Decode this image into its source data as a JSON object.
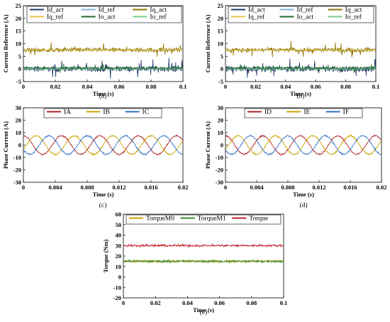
{
  "chart_data": [
    {
      "id": "a",
      "type": "line",
      "caption": "(a)",
      "xlabel": "Time (s)",
      "ylabel": "Current Reference (A)",
      "xlim": [
        0,
        0.1
      ],
      "ylim": [
        -5,
        25
      ],
      "xticks": [
        "0",
        "0.02",
        "0.04",
        "0.06",
        "0.08",
        "0.1"
      ],
      "yticks": [
        "-5",
        "0",
        "5",
        "10",
        "15",
        "20",
        "25"
      ],
      "legend_position": "top",
      "series": [
        {
          "name": "Id_act",
          "color": "#1f3a6b",
          "kind": "noisy",
          "mean": 0,
          "noise": 1.5,
          "spikes": 3.5
        },
        {
          "name": "Id_ref",
          "color": "#7fb3e0",
          "kind": "const",
          "mean": 0
        },
        {
          "name": "Iq_act",
          "color": "#8f7500",
          "kind": "noisy",
          "mean": 7.5,
          "noise": 1.2,
          "spikes": 3
        },
        {
          "name": "Iq_ref",
          "color": "#e8c54a",
          "kind": "const",
          "mean": 7.5
        },
        {
          "name": "Io_act",
          "color": "#1e6b2f",
          "kind": "noisy",
          "mean": 0.3,
          "noise": 0.8,
          "spikes": 1.5
        },
        {
          "name": "Io_ref",
          "color": "#7cc98a",
          "kind": "const",
          "mean": 0
        }
      ]
    },
    {
      "id": "b",
      "type": "line",
      "caption": "(b)",
      "xlabel": "Time (s)",
      "ylabel": "Current Reference (A)",
      "xlim": [
        0,
        0.1
      ],
      "ylim": [
        -5,
        25
      ],
      "xticks": [
        "0",
        "0.02",
        "0.04",
        "0.06",
        "0.08",
        "0.1"
      ],
      "yticks": [
        "-5",
        "0",
        "5",
        "10",
        "15",
        "20",
        "25"
      ],
      "legend_position": "top",
      "series": [
        {
          "name": "Id_act",
          "color": "#1f3a6b",
          "kind": "noisy",
          "mean": 0,
          "noise": 1.5,
          "spikes": 3.5
        },
        {
          "name": "Id_ref",
          "color": "#7fb3e0",
          "kind": "const",
          "mean": 0
        },
        {
          "name": "Iq_act",
          "color": "#8f7500",
          "kind": "noisy",
          "mean": 7.5,
          "noise": 1.2,
          "spikes": 3
        },
        {
          "name": "Iq_ref",
          "color": "#e8c54a",
          "kind": "const",
          "mean": 7.5
        },
        {
          "name": "Io_act",
          "color": "#1e6b2f",
          "kind": "noisy",
          "mean": 0.3,
          "noise": 0.8,
          "spikes": 1.5
        },
        {
          "name": "Io_ref",
          "color": "#7cc98a",
          "kind": "const",
          "mean": 0
        }
      ]
    },
    {
      "id": "c",
      "type": "line",
      "caption": "(c)",
      "xlabel": "Time (s)",
      "ylabel": "Phase Current (A)",
      "xlim": [
        0,
        0.02
      ],
      "ylim": [
        -30,
        30
      ],
      "xticks": [
        "0",
        "0.004",
        "0.008",
        "0.012",
        "0.016",
        "0.02"
      ],
      "yticks": [
        "-30",
        "-20",
        "-10",
        "0",
        "10",
        "20",
        "30"
      ],
      "legend_position": "top",
      "series": [
        {
          "name": "IA",
          "color": "#b22222",
          "kind": "sine",
          "amplitude": 7.5,
          "period": 0.0048,
          "phase_deg": 90,
          "noise": 1.0
        },
        {
          "name": "IB",
          "color": "#c9a400",
          "kind": "sine",
          "amplitude": 7.5,
          "period": 0.0048,
          "phase_deg": -30,
          "noise": 1.0
        },
        {
          "name": "IC",
          "color": "#2e6fc7",
          "kind": "sine",
          "amplitude": 7.5,
          "period": 0.0048,
          "phase_deg": 210,
          "noise": 1.0
        }
      ]
    },
    {
      "id": "d",
      "type": "line",
      "caption": "(d)",
      "xlabel": "Time (s)",
      "ylabel": "Phase Current (A)",
      "xlim": [
        0,
        0.02
      ],
      "ylim": [
        -30,
        30
      ],
      "xticks": [
        "0",
        "0.004",
        "0.008",
        "0.012",
        "0.016",
        "0.02"
      ],
      "yticks": [
        "-30",
        "-20",
        "-10",
        "0",
        "10",
        "20",
        "30"
      ],
      "legend_position": "top",
      "series": [
        {
          "name": "ID",
          "color": "#b22222",
          "kind": "sine",
          "amplitude": 7.5,
          "period": 0.0048,
          "phase_deg": 90,
          "noise": 1.0
        },
        {
          "name": "IE",
          "color": "#c9a400",
          "kind": "sine",
          "amplitude": 7.5,
          "period": 0.0048,
          "phase_deg": -30,
          "noise": 1.0
        },
        {
          "name": "IF",
          "color": "#2e6fc7",
          "kind": "sine",
          "amplitude": 7.5,
          "period": 0.0048,
          "phase_deg": 210,
          "noise": 1.0
        }
      ]
    },
    {
      "id": "e",
      "type": "line",
      "caption": "(e)",
      "xlabel": "Time (s)",
      "ylabel": "Torque (Nm)",
      "xlim": [
        0,
        0.1
      ],
      "ylim": [
        -20,
        60
      ],
      "xticks": [
        "0",
        "0.02",
        "0.04",
        "0.06",
        "0.08",
        "0.1"
      ],
      "yticks": [
        "-20",
        "-10",
        "0",
        "10",
        "20",
        "30",
        "40",
        "50",
        "60"
      ],
      "legend_position": "top",
      "series": [
        {
          "name": "TorqueM0",
          "color": "#c9a400",
          "kind": "noisy",
          "mean": 15,
          "noise": 1.6,
          "spikes": 0
        },
        {
          "name": "TorqueM1",
          "color": "#3a8a2e",
          "kind": "noisy",
          "mean": 15,
          "noise": 1.6,
          "spikes": 0
        },
        {
          "name": "Torque",
          "color": "#c0202a",
          "kind": "noisy",
          "mean": 30,
          "noise": 1.6,
          "spikes": 0
        }
      ]
    }
  ]
}
